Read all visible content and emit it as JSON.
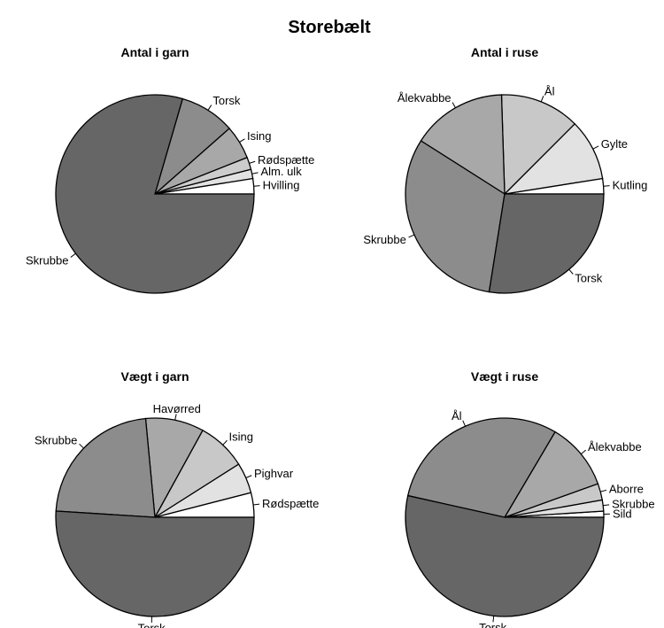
{
  "title": "Storebælt",
  "chart_data": [
    {
      "type": "pie",
      "title": "Antal i garn",
      "labels": [
        "Hvilling",
        "Alm. ulk",
        "Rødspætte",
        "Ising",
        "Torsk",
        "Skrubbe"
      ],
      "values": [
        2.5,
        1.5,
        2.0,
        5.5,
        9.0,
        79.5
      ],
      "colors": [
        "#ffffff",
        "#e2e2e2",
        "#cccccc",
        "#a8a8a8",
        "#8c8c8c",
        "#666666"
      ]
    },
    {
      "type": "pie",
      "title": "Antal i ruse",
      "labels": [
        "Kutling",
        "Gylte",
        "Ål",
        "Ålekvabbe",
        "Skrubbe",
        "Torsk"
      ],
      "values": [
        2.5,
        10.0,
        13.0,
        15.5,
        31.5,
        27.5
      ],
      "colors": [
        "#ffffff",
        "#e2e2e2",
        "#c8c8c8",
        "#a8a8a8",
        "#8c8c8c",
        "#666666"
      ]
    },
    {
      "type": "pie",
      "title": "Vægt i garn",
      "labels": [
        "Rødspætte",
        "Pighvar",
        "Ising",
        "Havørred",
        "Skrubbe",
        "Torsk"
      ],
      "values": [
        4.0,
        5.0,
        8.0,
        9.5,
        22.5,
        51.0
      ],
      "colors": [
        "#ffffff",
        "#e2e2e2",
        "#c8c8c8",
        "#a8a8a8",
        "#8c8c8c",
        "#666666"
      ]
    },
    {
      "type": "pie",
      "title": "Vægt i ruse",
      "labels": [
        "Sild",
        "Skrubbe",
        "Aborre",
        "Ålekvabbe",
        "Ål",
        "Torsk"
      ],
      "values": [
        1.0,
        1.8,
        2.7,
        11.0,
        30.0,
        53.5
      ],
      "colors": [
        "#ffffff",
        "#e2e2e2",
        "#c8c8c8",
        "#a8a8a8",
        "#8c8c8c",
        "#666666"
      ]
    }
  ]
}
